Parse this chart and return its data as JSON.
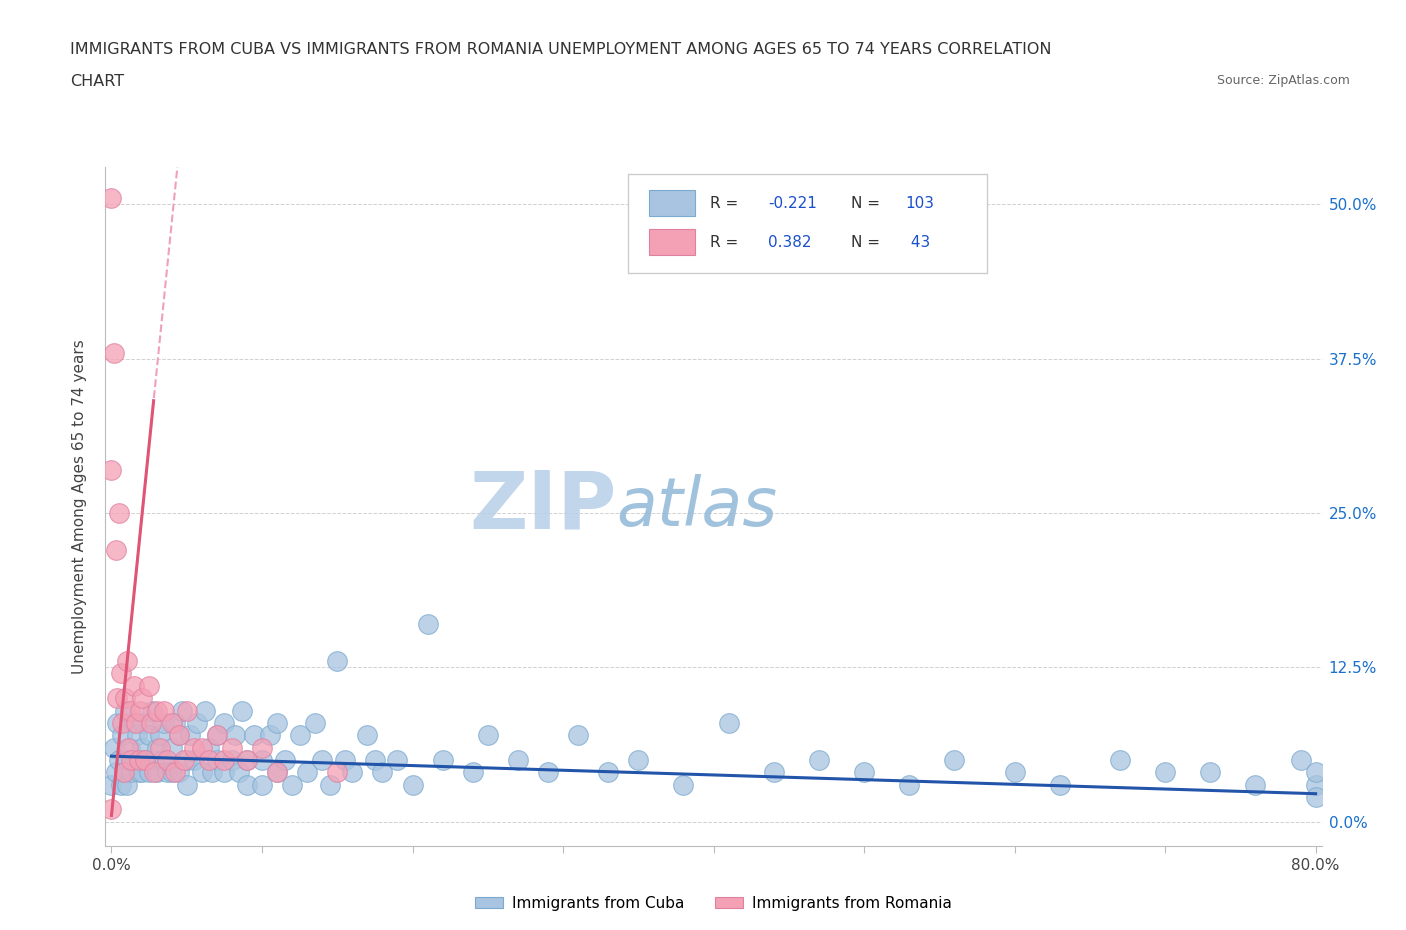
{
  "title_line1": "IMMIGRANTS FROM CUBA VS IMMIGRANTS FROM ROMANIA UNEMPLOYMENT AMONG AGES 65 TO 74 YEARS CORRELATION",
  "title_line2": "CHART",
  "source_text": "Source: ZipAtlas.com",
  "ylabel": "Unemployment Among Ages 65 to 74 years",
  "xmin": 0.0,
  "xmax": 0.8,
  "ymin": -0.02,
  "ymax": 0.53,
  "yticks": [
    0.0,
    0.125,
    0.25,
    0.375,
    0.5
  ],
  "ytick_labels_right": [
    "0.0%",
    "12.5%",
    "25.0%",
    "37.5%",
    "50.0%"
  ],
  "cuba_color": "#a8c4e0",
  "cuba_edge_color": "#7aaad0",
  "romania_color": "#f4a0b5",
  "romania_edge_color": "#e080a0",
  "cuba_line_color": "#2255aa",
  "romania_line_color": "#e05575",
  "romania_dash_color": "#f0a0b8",
  "legend_text_color": "#1a50cc",
  "watermark_zip_color": "#b8cfe8",
  "watermark_atlas_color": "#90b8d8",
  "cuba_scatter_x": [
    0.0,
    0.002,
    0.003,
    0.004,
    0.005,
    0.006,
    0.007,
    0.008,
    0.009,
    0.01,
    0.01,
    0.012,
    0.013,
    0.015,
    0.015,
    0.017,
    0.018,
    0.02,
    0.02,
    0.021,
    0.022,
    0.025,
    0.025,
    0.027,
    0.028,
    0.03,
    0.03,
    0.032,
    0.034,
    0.035,
    0.037,
    0.04,
    0.04,
    0.042,
    0.045,
    0.045,
    0.047,
    0.05,
    0.05,
    0.052,
    0.055,
    0.057,
    0.06,
    0.062,
    0.065,
    0.067,
    0.07,
    0.07,
    0.075,
    0.075,
    0.08,
    0.082,
    0.085,
    0.087,
    0.09,
    0.09,
    0.095,
    0.1,
    0.1,
    0.105,
    0.11,
    0.11,
    0.115,
    0.12,
    0.125,
    0.13,
    0.135,
    0.14,
    0.145,
    0.15,
    0.155,
    0.16,
    0.17,
    0.175,
    0.18,
    0.19,
    0.2,
    0.21,
    0.22,
    0.24,
    0.25,
    0.27,
    0.29,
    0.31,
    0.33,
    0.35,
    0.38,
    0.41,
    0.44,
    0.47,
    0.5,
    0.53,
    0.56,
    0.6,
    0.63,
    0.67,
    0.7,
    0.73,
    0.76,
    0.79,
    0.8,
    0.8,
    0.8
  ],
  "cuba_scatter_y": [
    0.03,
    0.06,
    0.04,
    0.08,
    0.05,
    0.03,
    0.07,
    0.04,
    0.09,
    0.05,
    0.03,
    0.06,
    0.04,
    0.08,
    0.05,
    0.07,
    0.04,
    0.06,
    0.04,
    0.08,
    0.05,
    0.07,
    0.04,
    0.09,
    0.05,
    0.06,
    0.04,
    0.07,
    0.05,
    0.08,
    0.04,
    0.06,
    0.04,
    0.08,
    0.07,
    0.04,
    0.09,
    0.05,
    0.03,
    0.07,
    0.05,
    0.08,
    0.04,
    0.09,
    0.06,
    0.04,
    0.07,
    0.05,
    0.08,
    0.04,
    0.05,
    0.07,
    0.04,
    0.09,
    0.05,
    0.03,
    0.07,
    0.05,
    0.03,
    0.07,
    0.04,
    0.08,
    0.05,
    0.03,
    0.07,
    0.04,
    0.08,
    0.05,
    0.03,
    0.13,
    0.05,
    0.04,
    0.07,
    0.05,
    0.04,
    0.05,
    0.03,
    0.16,
    0.05,
    0.04,
    0.07,
    0.05,
    0.04,
    0.07,
    0.04,
    0.05,
    0.03,
    0.08,
    0.04,
    0.05,
    0.04,
    0.03,
    0.05,
    0.04,
    0.03,
    0.05,
    0.04,
    0.04,
    0.03,
    0.05,
    0.03,
    0.04,
    0.02
  ],
  "romania_scatter_x": [
    0.0,
    0.0,
    0.0,
    0.002,
    0.003,
    0.004,
    0.005,
    0.006,
    0.007,
    0.008,
    0.009,
    0.01,
    0.011,
    0.012,
    0.013,
    0.015,
    0.016,
    0.018,
    0.019,
    0.02,
    0.022,
    0.025,
    0.026,
    0.028,
    0.03,
    0.032,
    0.035,
    0.037,
    0.04,
    0.042,
    0.045,
    0.048,
    0.05,
    0.055,
    0.06,
    0.065,
    0.07,
    0.075,
    0.08,
    0.09,
    0.1,
    0.11,
    0.15
  ],
  "romania_scatter_y": [
    0.505,
    0.285,
    0.01,
    0.38,
    0.22,
    0.1,
    0.25,
    0.12,
    0.08,
    0.04,
    0.1,
    0.13,
    0.06,
    0.09,
    0.05,
    0.11,
    0.08,
    0.05,
    0.09,
    0.1,
    0.05,
    0.11,
    0.08,
    0.04,
    0.09,
    0.06,
    0.09,
    0.05,
    0.08,
    0.04,
    0.07,
    0.05,
    0.09,
    0.06,
    0.06,
    0.05,
    0.07,
    0.05,
    0.06,
    0.05,
    0.06,
    0.04,
    0.04
  ],
  "cuba_R": -0.221,
  "cuba_N": 103,
  "romania_R": 0.382,
  "romania_N": 43
}
